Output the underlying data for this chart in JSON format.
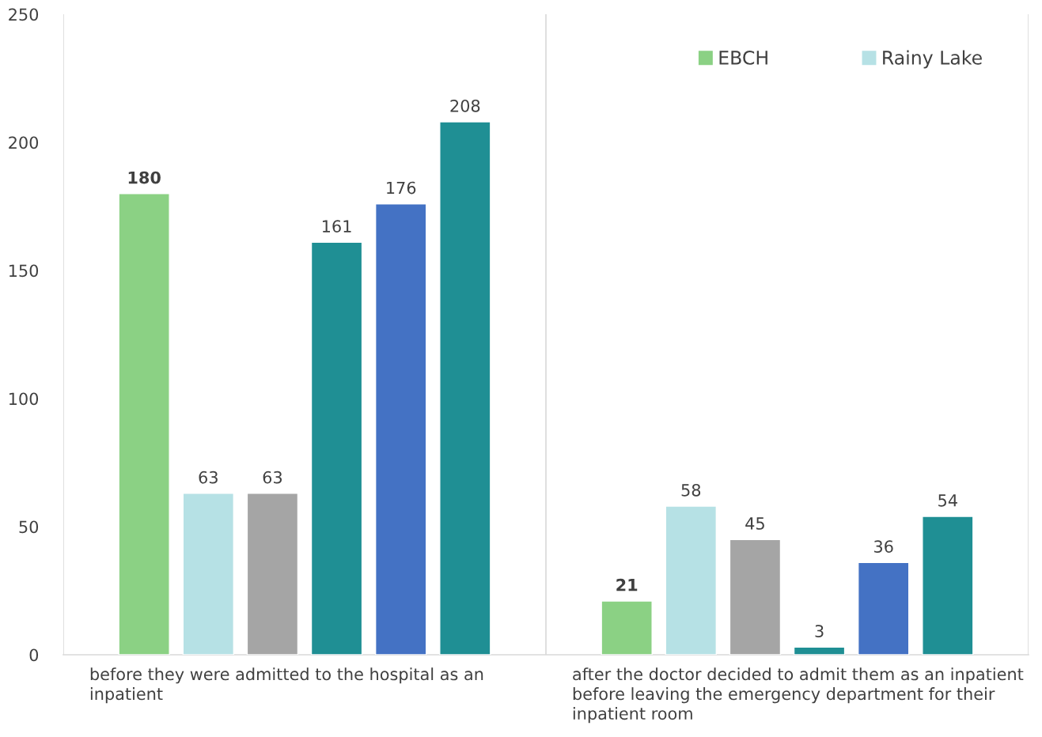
{
  "chart_data": {
    "type": "bar",
    "categories": [
      "before they were admitted to the hospital as an inpatient",
      "after the doctor decided to admit them as an inpatient before leaving the emergency department for their inpatient room"
    ],
    "series": [
      {
        "name": "EBCH",
        "color": "#8bd184",
        "values": [
          180,
          21
        ]
      },
      {
        "name": "Rainy Lake",
        "color": "#b6e1e5",
        "values": [
          63,
          58
        ]
      },
      {
        "color": "#a5a5a5",
        "values": [
          63,
          45
        ]
      },
      {
        "color": "#1f8f94",
        "values": [
          161,
          3
        ]
      },
      {
        "color": "#4472c4",
        "values": [
          176,
          36
        ]
      },
      {
        "color": "#1f8f94",
        "values": [
          208,
          54
        ]
      }
    ],
    "ylim": [
      0,
      250
    ],
    "yticks": [
      0,
      50,
      100,
      150,
      200,
      250
    ],
    "grid": "x",
    "legend": "top right",
    "data_labels": true
  }
}
